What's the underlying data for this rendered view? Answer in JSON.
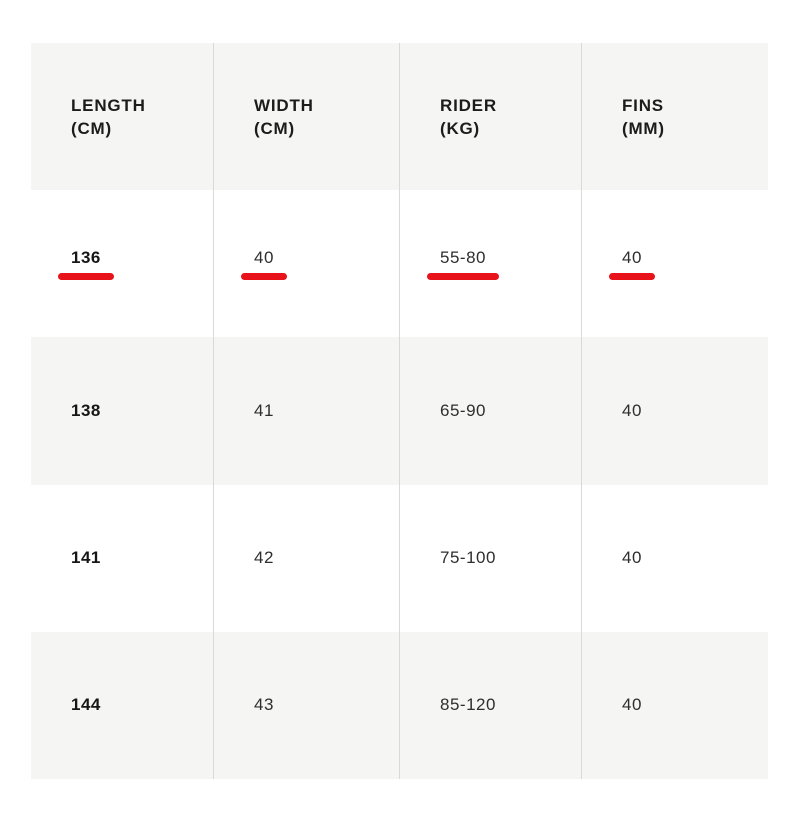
{
  "colors": {
    "highlight_underline_red": "#e8121a",
    "band_gray": "#f5f5f3",
    "divider_gray": "#d9d9d7",
    "text_dark": "#1c1c1c"
  },
  "header": {
    "cells": [
      {
        "line1": "LENGTH",
        "line2": "(CM)"
      },
      {
        "line1": "WIDTH",
        "line2": "(CM)"
      },
      {
        "line1": "RIDER",
        "line2": "(KG)"
      },
      {
        "line1": "FINS",
        "line2": "(MM)"
      }
    ]
  },
  "rows": [
    {
      "selected": true,
      "cells": [
        "136",
        "40",
        "55-80",
        "40"
      ]
    },
    {
      "selected": false,
      "cells": [
        "138",
        "41",
        "65-90",
        "40"
      ]
    },
    {
      "selected": false,
      "cells": [
        "141",
        "42",
        "75-100",
        "40"
      ]
    },
    {
      "selected": false,
      "cells": [
        "144",
        "43",
        "85-120",
        "40"
      ]
    }
  ]
}
